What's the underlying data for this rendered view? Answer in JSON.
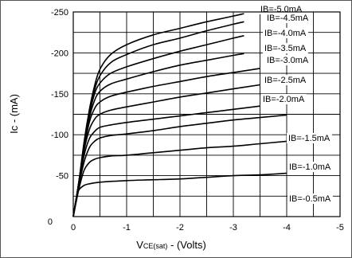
{
  "chart_data": {
    "type": "line",
    "xlabel": "VCE(sat) - (Volts)",
    "xlabel_main": "V",
    "xlabel_sub": "CE(sat)",
    "xlabel_rest": " - (Volts)",
    "ylabel": "Ic - (mA)",
    "xlim": [
      0,
      -5
    ],
    "ylim": [
      0,
      -250
    ],
    "x_ticks": [
      "0",
      "-1",
      "-2",
      "-3",
      "-4",
      "-5"
    ],
    "y_ticks": [
      "0",
      "-50",
      "-100",
      "-150",
      "-200",
      "-250"
    ],
    "grid": true,
    "series": [
      {
        "name": "IB=-5.0mA",
        "points": [
          [
            0,
            0
          ],
          [
            -0.1,
            -40
          ],
          [
            -0.2,
            -90
          ],
          [
            -0.3,
            -130
          ],
          [
            -0.4,
            -160
          ],
          [
            -0.5,
            -180
          ],
          [
            -0.7,
            -198
          ],
          [
            -1,
            -210
          ],
          [
            -1.5,
            -222
          ],
          [
            -2,
            -230
          ],
          [
            -2.5,
            -238
          ],
          [
            -3,
            -245
          ],
          [
            -3.2,
            -248
          ]
        ]
      },
      {
        "name": "IB=-4.5mA",
        "points": [
          [
            0,
            0
          ],
          [
            -0.1,
            -40
          ],
          [
            -0.2,
            -88
          ],
          [
            -0.3,
            -127
          ],
          [
            -0.4,
            -155
          ],
          [
            -0.5,
            -172
          ],
          [
            -0.7,
            -188
          ],
          [
            -1,
            -198
          ],
          [
            -1.5,
            -210
          ],
          [
            -2,
            -218
          ],
          [
            -2.5,
            -227
          ],
          [
            -3,
            -235
          ],
          [
            -3.2,
            -238
          ]
        ]
      },
      {
        "name": "IB=-4.0mA",
        "points": [
          [
            0,
            0
          ],
          [
            -0.1,
            -40
          ],
          [
            -0.2,
            -86
          ],
          [
            -0.3,
            -124
          ],
          [
            -0.4,
            -150
          ],
          [
            -0.5,
            -163
          ],
          [
            -0.7,
            -175
          ],
          [
            -1,
            -183
          ],
          [
            -1.5,
            -193
          ],
          [
            -2,
            -202
          ],
          [
            -2.5,
            -210
          ],
          [
            -3,
            -218
          ],
          [
            -3.2,
            -221
          ]
        ]
      },
      {
        "name": "IB=-3.5mA",
        "points": [
          [
            0,
            0
          ],
          [
            -0.1,
            -40
          ],
          [
            -0.2,
            -84
          ],
          [
            -0.3,
            -120
          ],
          [
            -0.4,
            -142
          ],
          [
            -0.5,
            -153
          ],
          [
            -0.7,
            -162
          ],
          [
            -1,
            -168
          ],
          [
            -1.5,
            -177
          ],
          [
            -2,
            -185
          ],
          [
            -2.5,
            -191
          ],
          [
            -3,
            -197
          ],
          [
            -3.2,
            -199
          ]
        ]
      },
      {
        "name": "IB=-3.0mA",
        "points": [
          [
            0,
            0
          ],
          [
            -0.1,
            -40
          ],
          [
            -0.2,
            -82
          ],
          [
            -0.3,
            -115
          ],
          [
            -0.4,
            -132
          ],
          [
            -0.5,
            -140
          ],
          [
            -0.7,
            -147
          ],
          [
            -1,
            -152
          ],
          [
            -1.5,
            -159
          ],
          [
            -2,
            -165
          ],
          [
            -2.5,
            -171
          ],
          [
            -3,
            -176
          ],
          [
            -3.5,
            -181
          ]
        ]
      },
      {
        "name": "IB=-2.5mA",
        "points": [
          [
            0,
            0
          ],
          [
            -0.1,
            -40
          ],
          [
            -0.2,
            -80
          ],
          [
            -0.3,
            -106
          ],
          [
            -0.4,
            -119
          ],
          [
            -0.5,
            -125
          ],
          [
            -0.7,
            -130
          ],
          [
            -1,
            -134
          ],
          [
            -1.5,
            -140
          ],
          [
            -2,
            -146
          ],
          [
            -2.5,
            -151
          ],
          [
            -3,
            -156
          ],
          [
            -3.5,
            -161
          ]
        ]
      },
      {
        "name": "IB=-2.0mA",
        "points": [
          [
            0,
            0
          ],
          [
            -0.1,
            -38
          ],
          [
            -0.2,
            -74
          ],
          [
            -0.3,
            -95
          ],
          [
            -0.4,
            -104
          ],
          [
            -0.5,
            -109
          ],
          [
            -0.7,
            -112
          ],
          [
            -1,
            -115
          ],
          [
            -1.5,
            -119
          ],
          [
            -2,
            -123
          ],
          [
            -2.5,
            -127
          ],
          [
            -3,
            -131
          ],
          [
            -3.5,
            -135
          ]
        ]
      },
      {
        "name": "IB=-1.5mA",
        "points": [
          [
            0,
            0
          ],
          [
            -0.1,
            -36
          ],
          [
            -0.2,
            -66
          ],
          [
            -0.3,
            -84
          ],
          [
            -0.4,
            -92
          ],
          [
            -0.5,
            -96
          ],
          [
            -0.7,
            -99
          ],
          [
            -1,
            -101
          ],
          [
            -1.5,
            -105
          ],
          [
            -2,
            -110
          ],
          [
            -2.5,
            -114
          ],
          [
            -3,
            -118
          ],
          [
            -3.5,
            -121
          ],
          [
            -4,
            -124
          ]
        ]
      },
      {
        "name": "IB=-1.0mA",
        "points": [
          [
            0,
            0
          ],
          [
            -0.1,
            -32
          ],
          [
            -0.2,
            -56
          ],
          [
            -0.3,
            -66
          ],
          [
            -0.4,
            -70
          ],
          [
            -0.5,
            -72
          ],
          [
            -0.7,
            -74
          ],
          [
            -1,
            -75
          ],
          [
            -1.5,
            -78
          ],
          [
            -2,
            -81
          ],
          [
            -2.5,
            -84
          ],
          [
            -3,
            -86
          ],
          [
            -3.5,
            -89
          ],
          [
            -4,
            -92
          ]
        ]
      },
      {
        "name": "IB=-0.5mA",
        "points": [
          [
            0,
            0
          ],
          [
            -0.05,
            -20
          ],
          [
            -0.1,
            -32
          ],
          [
            -0.2,
            -38
          ],
          [
            -0.3,
            -40
          ],
          [
            -0.5,
            -42
          ],
          [
            -1,
            -44
          ],
          [
            -1.5,
            -45
          ],
          [
            -2,
            -46
          ],
          [
            -2.5,
            -48
          ],
          [
            -3,
            -50
          ],
          [
            -3.5,
            -51
          ],
          [
            -4,
            -53
          ]
        ]
      }
    ]
  }
}
